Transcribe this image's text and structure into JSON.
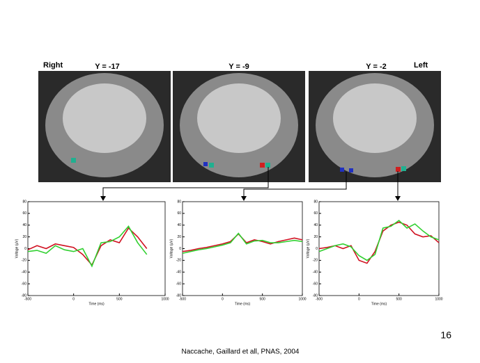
{
  "slide": {
    "labels": [
      "Right",
      "Y = -17",
      "Y = -9",
      "Y = -2",
      "Left"
    ],
    "page_number": "16",
    "citation": "Naccache, Gaillard et all, PNAS, 2004"
  },
  "chart_data": [
    {
      "type": "line",
      "xlabel": "Time (ms)",
      "ylabel": "Voltage (µV)",
      "xlim": [
        -500,
        1000
      ],
      "ylim": [
        -80,
        80
      ],
      "xticks": [
        -500,
        0,
        500,
        1000
      ],
      "yticks": [
        -80,
        -60,
        -40,
        -20,
        0,
        20,
        40,
        60,
        80
      ],
      "x": [
        -500,
        -400,
        -300,
        -200,
        -100,
        0,
        100,
        200,
        300,
        400,
        500,
        600,
        700,
        800
      ],
      "series": [
        {
          "color": "#d01020",
          "values": [
            -2,
            5,
            0,
            8,
            5,
            2,
            -10,
            -28,
            5,
            15,
            10,
            35,
            20,
            0
          ]
        },
        {
          "color": "#30d030",
          "values": [
            -5,
            -3,
            -8,
            5,
            -2,
            -5,
            0,
            -30,
            10,
            12,
            20,
            38,
            10,
            -10
          ]
        }
      ]
    },
    {
      "type": "line",
      "xlabel": "Time (ms)",
      "ylabel": "Voltage (µV)",
      "xlim": [
        -500,
        1000
      ],
      "ylim": [
        -80,
        80
      ],
      "xticks": [
        -500,
        0,
        500,
        1000
      ],
      "yticks": [
        -80,
        -60,
        -40,
        -20,
        0,
        20,
        40,
        60,
        80
      ],
      "x": [
        -500,
        -400,
        -300,
        -200,
        -100,
        0,
        100,
        200,
        300,
        400,
        500,
        600,
        700,
        800,
        900,
        1000
      ],
      "series": [
        {
          "color": "#d01020",
          "values": [
            -5,
            -3,
            0,
            2,
            5,
            8,
            12,
            25,
            10,
            15,
            12,
            8,
            12,
            15,
            18,
            15
          ]
        },
        {
          "color": "#30d030",
          "values": [
            -8,
            -5,
            -2,
            0,
            3,
            6,
            10,
            26,
            8,
            13,
            14,
            10,
            10,
            12,
            14,
            12
          ]
        }
      ]
    },
    {
      "type": "line",
      "xlabel": "Time (ms)",
      "ylabel": "Voltage (µV)",
      "xlim": [
        -500,
        1000
      ],
      "ylim": [
        -80,
        80
      ],
      "xticks": [
        -500,
        0,
        500,
        1000
      ],
      "yticks": [
        -80,
        -60,
        -40,
        -20,
        0,
        20,
        40,
        60,
        80
      ],
      "x": [
        -500,
        -400,
        -300,
        -200,
        -100,
        0,
        100,
        200,
        300,
        400,
        500,
        600,
        700,
        800,
        900,
        1000
      ],
      "series": [
        {
          "color": "#d01020",
          "values": [
            0,
            2,
            5,
            0,
            5,
            -20,
            -25,
            -5,
            30,
            40,
            45,
            40,
            25,
            20,
            22,
            10
          ]
        },
        {
          "color": "#30d030",
          "values": [
            -5,
            0,
            5,
            8,
            3,
            -12,
            -20,
            -10,
            35,
            38,
            48,
            35,
            42,
            30,
            20,
            15
          ]
        }
      ]
    }
  ]
}
